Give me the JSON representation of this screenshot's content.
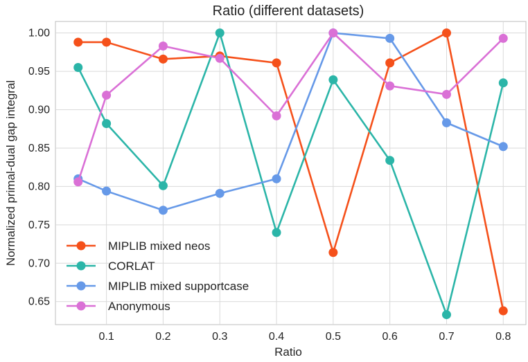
{
  "chart_data": {
    "type": "line",
    "title": "Ratio (different datasets)",
    "xlabel": "Ratio",
    "ylabel": "Normalized primal-dual gap integral",
    "x": [
      0.05,
      0.1,
      0.2,
      0.3,
      0.4,
      0.5,
      0.6,
      0.7,
      0.8
    ],
    "xticks": [
      "0.1",
      "0.2",
      "0.3",
      "0.4",
      "0.5",
      "0.6",
      "0.7",
      "0.8"
    ],
    "yticks": [
      "0.65",
      "0.70",
      "0.75",
      "0.80",
      "0.85",
      "0.90",
      "0.95",
      "1.00"
    ],
    "xlim": [
      0.01,
      0.84
    ],
    "ylim": [
      0.62,
      1.015
    ],
    "grid": true,
    "legend_position": "lower-left",
    "series": [
      {
        "name": "MIPLIB mixed neos",
        "color": "#f5501a",
        "values": [
          0.988,
          0.988,
          0.966,
          0.97,
          0.961,
          0.714,
          0.961,
          1.0,
          0.638
        ]
      },
      {
        "name": "CORLAT",
        "color": "#2bb5a8",
        "values": [
          0.955,
          0.882,
          0.801,
          1.0,
          0.74,
          0.939,
          0.834,
          0.633,
          0.935
        ]
      },
      {
        "name": "MIPLIB mixed supportcase",
        "color": "#6699e8",
        "values": [
          0.81,
          0.794,
          0.769,
          0.791,
          0.81,
          1.0,
          0.993,
          0.883,
          0.852
        ]
      },
      {
        "name": "Anonymous",
        "color": "#da70d6",
        "values": [
          0.806,
          0.919,
          0.983,
          0.967,
          0.892,
          1.0,
          0.931,
          0.92,
          0.993
        ]
      }
    ]
  }
}
